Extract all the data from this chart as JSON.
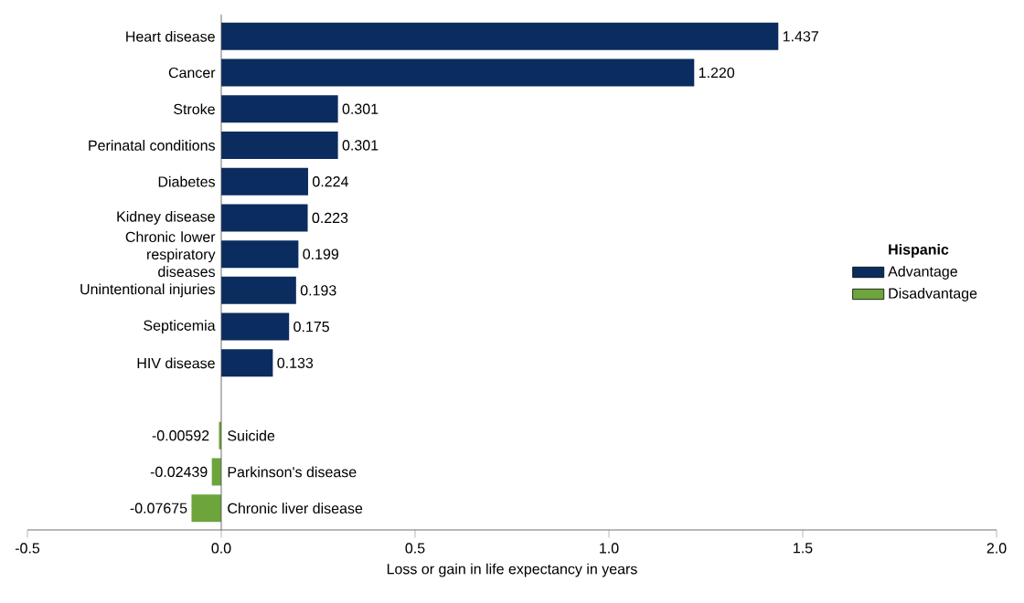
{
  "chart_data": {
    "type": "bar",
    "orientation": "horizontal",
    "xlabel": "Loss or gain in life expectancy in years",
    "legend_title": "Hispanic",
    "legend": "right",
    "categories": [
      "Heart disease",
      "Cancer",
      "Stroke",
      "Perinatal conditions",
      "Diabetes",
      "Kidney disease",
      "Chronic lower respiratory diseases",
      "Unintentional injuries",
      "Septicemia",
      "HIV disease",
      null,
      "Suicide",
      "Parkinson's disease",
      "Chronic liver disease"
    ],
    "series": [
      {
        "name": "Advantage",
        "color": "#0b2c5f",
        "values": [
          1.437,
          1.22,
          0.301,
          0.301,
          0.224,
          0.223,
          0.199,
          0.193,
          0.175,
          0.133,
          null,
          null,
          null,
          null
        ],
        "value_labels": [
          "1.437",
          "1.220",
          "0.301",
          "0.301",
          "0.224",
          "0.223",
          "0.199",
          "0.193",
          "0.175",
          "0.133",
          null,
          null,
          null,
          null
        ]
      },
      {
        "name": "Disadvantage",
        "color": "#6ea43c",
        "values": [
          null,
          null,
          null,
          null,
          null,
          null,
          null,
          null,
          null,
          null,
          null,
          -0.00592,
          -0.02439,
          -0.07675
        ],
        "value_labels": [
          null,
          null,
          null,
          null,
          null,
          null,
          null,
          null,
          null,
          null,
          null,
          "-0.00592",
          "-0.02439",
          "-0.07675"
        ]
      }
    ],
    "xlim": [
      -0.5,
      2.0
    ],
    "xticks": [
      {
        "value": -0.5,
        "label": "-0.5"
      },
      {
        "value": 0,
        "label": "0.0"
      },
      {
        "value": 0.5,
        "label": "0.5"
      },
      {
        "value": 1,
        "label": "1.0"
      },
      {
        "value": 1.5,
        "label": "1.5"
      },
      {
        "value": 2,
        "label": "2.0"
      }
    ]
  }
}
